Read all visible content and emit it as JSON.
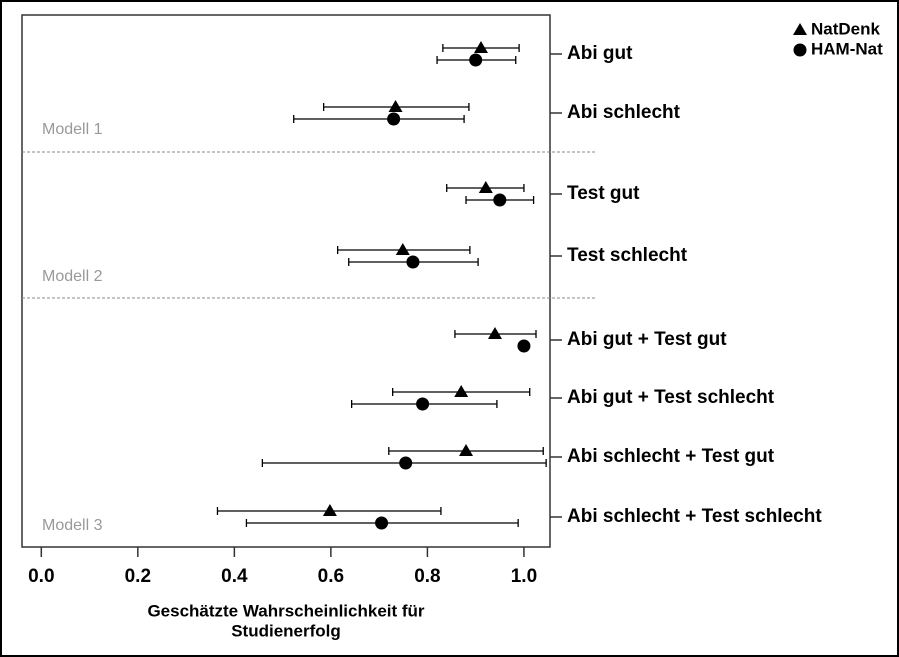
{
  "chart_data": {
    "type": "dot-errorbar",
    "x_label": [
      "Geschätzte Wahrscheinlichkeit für",
      "Studienerfolg"
    ],
    "categories": [
      "Abi gut",
      "Abi schlecht",
      "Test gut",
      "Test schlecht",
      "Abi gut + Test gut",
      "Abi gut + Test schlecht",
      "Abi schlecht + Test gut",
      "Abi schlecht + Test schlecht"
    ],
    "groups": [
      {
        "label": "Modell 1"
      },
      {
        "label": "Modell 2"
      },
      {
        "label": "Modell 3"
      }
    ],
    "series": [
      {
        "name": "NatDenk",
        "marker": "triangle",
        "color": "#000000",
        "values": [
          0.911,
          0.734,
          0.921,
          0.749,
          0.94,
          0.87,
          0.88,
          0.598
        ],
        "lower": [
          0.832,
          0.585,
          0.84,
          0.614,
          0.857,
          0.728,
          0.72,
          0.365
        ],
        "upper": [
          0.99,
          0.886,
          1.0,
          0.888,
          1.025,
          1.012,
          1.04,
          0.828
        ]
      },
      {
        "name": "HAM-Nat",
        "marker": "circle",
        "color": "#000000",
        "values": [
          0.9,
          0.73,
          0.95,
          0.77,
          1.0,
          0.79,
          0.755,
          0.705
        ],
        "lower": [
          0.82,
          0.523,
          0.88,
          0.637,
          null,
          0.643,
          0.458,
          0.425
        ],
        "upper": [
          0.983,
          0.876,
          1.02,
          0.905,
          null,
          0.944,
          1.046,
          0.988
        ]
      }
    ],
    "xlim": [
      -0.04,
      1.054
    ],
    "xticks": [
      {
        "value": 0,
        "label": "0.0"
      },
      0.2,
      0.4,
      0.6,
      0.8,
      {
        "value": 1,
        "label": "1.0"
      }
    ],
    "legend": "top-right"
  }
}
